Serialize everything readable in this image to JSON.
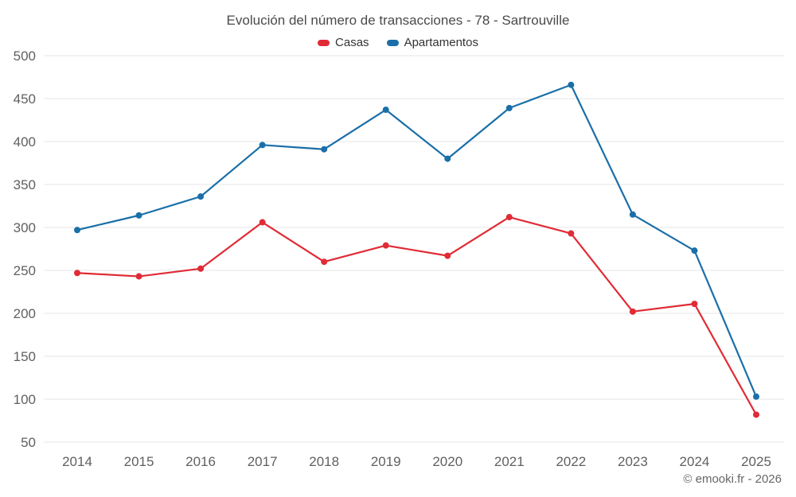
{
  "chart": {
    "footer": "© emooki.fr - 2026"
  },
  "chart_data": {
    "type": "line",
    "title": "Evolución del número de transacciones - 78 - Sartrouville",
    "categories": [
      "2014",
      "2015",
      "2016",
      "2017",
      "2018",
      "2019",
      "2020",
      "2021",
      "2022",
      "2023",
      "2024",
      "2025"
    ],
    "series": [
      {
        "name": "Casas",
        "color": "#e02b35",
        "values": [
          247,
          243,
          252,
          306,
          260,
          279,
          267,
          312,
          293,
          202,
          211,
          82
        ]
      },
      {
        "name": "Apartamentos",
        "color": "#1a6fa8",
        "values": [
          297,
          314,
          336,
          396,
          391,
          437,
          380,
          439,
          466,
          315,
          273,
          103
        ]
      }
    ],
    "ylim": [
      50,
      500
    ],
    "ytick_step": 50,
    "grid": true,
    "legend_position": "top",
    "grid_color": "#e6e6e6",
    "axis_text_color": "#606060"
  }
}
